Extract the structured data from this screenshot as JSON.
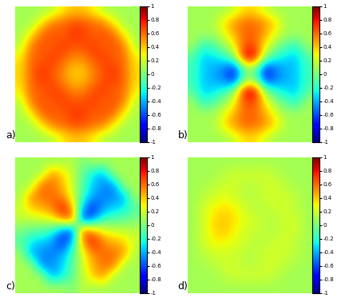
{
  "chart_data": [
    {
      "type": "heatmap",
      "annotation": "a)",
      "tick_labels": false,
      "colorbar_range": [
        -1,
        1
      ],
      "colorbar_ticks": [
        1,
        0.8,
        0.6,
        0.4,
        0.2,
        0,
        -0.2,
        -0.4,
        -0.6,
        -0.8,
        -1
      ],
      "cells": [
        [
          0.1,
          0.1,
          0.1,
          0.15,
          0.3,
          0.4,
          0.4,
          0.3,
          0.15,
          0.1,
          0.1,
          0.1
        ],
        [
          0.1,
          0.1,
          0.3,
          0.55,
          0.6,
          0.65,
          0.65,
          0.6,
          0.55,
          0.3,
          0.1,
          0.1
        ],
        [
          0.1,
          0.3,
          0.6,
          0.65,
          0.6,
          0.7,
          0.7,
          0.6,
          0.65,
          0.6,
          0.3,
          0.1
        ],
        [
          0.15,
          0.55,
          0.65,
          0.6,
          0.7,
          0.65,
          0.65,
          0.7,
          0.6,
          0.65,
          0.55,
          0.15
        ],
        [
          0.3,
          0.6,
          0.6,
          0.7,
          0.65,
          0.55,
          0.55,
          0.65,
          0.7,
          0.6,
          0.6,
          0.3
        ],
        [
          0.35,
          0.6,
          0.7,
          0.65,
          0.55,
          0.4,
          0.4,
          0.55,
          0.65,
          0.7,
          0.6,
          0.35
        ],
        [
          0.35,
          0.6,
          0.7,
          0.65,
          0.55,
          0.4,
          0.4,
          0.55,
          0.65,
          0.7,
          0.6,
          0.35
        ],
        [
          0.3,
          0.6,
          0.6,
          0.7,
          0.65,
          0.55,
          0.55,
          0.65,
          0.7,
          0.6,
          0.6,
          0.3
        ],
        [
          0.15,
          0.55,
          0.65,
          0.6,
          0.7,
          0.65,
          0.65,
          0.7,
          0.6,
          0.65,
          0.55,
          0.15
        ],
        [
          0.1,
          0.3,
          0.6,
          0.65,
          0.6,
          0.7,
          0.7,
          0.6,
          0.65,
          0.6,
          0.3,
          0.1
        ],
        [
          0.1,
          0.1,
          0.3,
          0.55,
          0.6,
          0.65,
          0.65,
          0.6,
          0.55,
          0.3,
          0.1,
          0.1
        ],
        [
          0.1,
          0.1,
          0.1,
          0.15,
          0.3,
          0.4,
          0.4,
          0.3,
          0.15,
          0.1,
          0.1,
          0.1
        ]
      ]
    },
    {
      "type": "heatmap",
      "annotation": "b)",
      "tick_labels": false,
      "colorbar_range": [
        -1,
        1
      ],
      "colorbar_ticks": [
        1,
        0.8,
        0.6,
        0.4,
        0.2,
        0,
        -0.2,
        -0.4,
        -0.6,
        -0.8,
        -1
      ],
      "cells": [
        [
          0.1,
          0.1,
          0.1,
          0.1,
          0.2,
          0.35,
          0.35,
          0.2,
          0.1,
          0.1,
          0.1,
          0.1
        ],
        [
          0.1,
          0.1,
          0.1,
          0.35,
          0.5,
          0.6,
          0.6,
          0.5,
          0.35,
          0.1,
          0.1,
          0.1
        ],
        [
          0.1,
          0.1,
          0.1,
          0.25,
          0.45,
          0.6,
          0.6,
          0.45,
          0.25,
          0.1,
          0.1,
          0.1
        ],
        [
          0.1,
          -0.2,
          -0.1,
          0.05,
          0.3,
          0.65,
          0.65,
          0.3,
          0.05,
          -0.1,
          -0.2,
          0.1
        ],
        [
          -0.1,
          -0.35,
          -0.3,
          -0.2,
          0.05,
          0.85,
          0.85,
          0.05,
          -0.2,
          -0.3,
          -0.35,
          -0.1
        ],
        [
          -0.15,
          -0.35,
          -0.4,
          -0.5,
          -0.7,
          0.0,
          0.0,
          -0.7,
          -0.5,
          -0.4,
          -0.35,
          -0.15
        ],
        [
          -0.15,
          -0.35,
          -0.4,
          -0.5,
          -0.7,
          0.0,
          0.0,
          -0.7,
          -0.5,
          -0.4,
          -0.35,
          -0.15
        ],
        [
          -0.1,
          -0.35,
          -0.3,
          -0.2,
          0.05,
          0.85,
          0.85,
          0.05,
          -0.2,
          -0.3,
          -0.35,
          -0.1
        ],
        [
          0.1,
          -0.2,
          -0.1,
          0.05,
          0.3,
          0.65,
          0.65,
          0.3,
          0.05,
          -0.1,
          -0.2,
          0.1
        ],
        [
          0.1,
          0.1,
          0.1,
          0.25,
          0.45,
          0.6,
          0.6,
          0.45,
          0.25,
          0.1,
          0.1,
          0.1
        ],
        [
          0.1,
          0.1,
          0.1,
          0.35,
          0.5,
          0.6,
          0.6,
          0.5,
          0.35,
          0.1,
          0.1,
          0.1
        ],
        [
          0.1,
          0.1,
          0.1,
          0.1,
          0.2,
          0.35,
          0.35,
          0.2,
          0.1,
          0.1,
          0.1,
          0.1
        ]
      ]
    },
    {
      "type": "heatmap",
      "annotation": "c)",
      "tick_labels": false,
      "colorbar_range": [
        -1,
        1
      ],
      "colorbar_ticks": [
        1,
        0.8,
        0.6,
        0.4,
        0.2,
        0,
        -0.2,
        -0.4,
        -0.6,
        -0.8,
        -1
      ],
      "cells": [
        [
          0.1,
          0.1,
          0.1,
          0.1,
          0.1,
          0.15,
          0.0,
          0.1,
          0.1,
          0.1,
          0.1,
          0.1
        ],
        [
          0.1,
          0.1,
          0.1,
          0.52,
          0.38,
          0.17,
          -0.07,
          -0.28,
          -0.42,
          0.1,
          0.1,
          0.1
        ],
        [
          0.1,
          0.1,
          0.6,
          0.57,
          0.45,
          0.2,
          -0.1,
          -0.35,
          -0.47,
          -0.5,
          0.1,
          0.1
        ],
        [
          0.1,
          0.52,
          0.57,
          0.6,
          0.53,
          0.26,
          -0.16,
          -0.43,
          -0.5,
          -0.47,
          -0.42,
          0.1
        ],
        [
          0.2,
          0.38,
          0.45,
          0.53,
          0.8,
          0.5,
          -0.4,
          -0.7,
          -0.43,
          -0.35,
          -0.28,
          -0.1
        ],
        [
          0.15,
          0.17,
          0.2,
          0.26,
          0.5,
          0.7,
          -0.7,
          -0.5,
          -0.16,
          -0.1,
          -0.07,
          0.0
        ],
        [
          0.0,
          -0.07,
          -0.1,
          -0.16,
          -0.5,
          -0.7,
          0.7,
          0.5,
          0.26,
          0.2,
          0.17,
          0.15
        ],
        [
          -0.1,
          -0.28,
          -0.35,
          -0.43,
          -0.7,
          -0.4,
          0.5,
          0.8,
          0.53,
          0.45,
          0.38,
          0.2
        ],
        [
          0.1,
          -0.42,
          -0.47,
          -0.5,
          -0.43,
          -0.16,
          0.26,
          0.53,
          0.6,
          0.57,
          0.52,
          0.1
        ],
        [
          0.1,
          0.1,
          -0.5,
          -0.47,
          -0.35,
          -0.1,
          0.2,
          0.45,
          0.57,
          0.6,
          0.1,
          0.1
        ],
        [
          0.1,
          0.1,
          0.1,
          -0.42,
          -0.28,
          -0.07,
          0.17,
          0.38,
          0.52,
          0.1,
          0.1,
          0.1
        ],
        [
          0.1,
          0.1,
          0.1,
          0.1,
          0.1,
          0.0,
          0.15,
          0.1,
          0.1,
          0.1,
          0.1,
          0.1
        ]
      ]
    },
    {
      "type": "heatmap",
      "annotation": "d)",
      "tick_labels": false,
      "colorbar_range": [
        -1,
        1
      ],
      "colorbar_ticks": [
        1,
        0.8,
        0.6,
        0.4,
        0.2,
        0,
        -0.2,
        -0.4,
        -0.6,
        -0.8,
        -1
      ],
      "cells": [
        [
          0.1,
          0.1,
          0.1,
          0.1,
          0.1,
          0.1,
          0.1,
          0.1,
          0.1,
          0.1,
          0.1,
          0.1
        ],
        [
          0.1,
          0.1,
          0.1,
          0.15,
          0.2,
          0.2,
          0.2,
          0.2,
          0.15,
          0.1,
          0.1,
          0.1
        ],
        [
          0.1,
          0.1,
          0.15,
          0.2,
          0.2,
          0.15,
          0.15,
          0.2,
          0.2,
          0.15,
          0.1,
          0.1
        ],
        [
          0.1,
          0.15,
          0.2,
          0.25,
          0.2,
          0.15,
          0.15,
          0.2,
          0.2,
          0.2,
          0.15,
          0.1
        ],
        [
          0.1,
          0.2,
          0.3,
          0.35,
          0.3,
          0.2,
          0.15,
          0.15,
          0.2,
          0.2,
          0.15,
          0.1
        ],
        [
          0.1,
          0.2,
          0.35,
          0.4,
          0.35,
          0.25,
          0.2,
          0.15,
          0.15,
          0.2,
          0.2,
          0.1
        ],
        [
          0.1,
          0.2,
          0.35,
          0.4,
          0.3,
          0.2,
          0.2,
          0.15,
          0.15,
          0.2,
          0.2,
          0.1
        ],
        [
          0.1,
          0.2,
          0.3,
          0.3,
          0.25,
          0.2,
          0.15,
          0.15,
          0.2,
          0.2,
          0.15,
          0.1
        ],
        [
          0.1,
          0.15,
          0.2,
          0.2,
          0.2,
          0.15,
          0.15,
          0.2,
          0.2,
          0.2,
          0.15,
          0.1
        ],
        [
          0.1,
          0.1,
          0.15,
          0.2,
          0.2,
          0.15,
          0.15,
          0.2,
          0.2,
          0.15,
          0.1,
          0.1
        ],
        [
          0.1,
          0.1,
          0.1,
          0.15,
          0.2,
          0.2,
          0.2,
          0.2,
          0.15,
          0.1,
          0.1,
          0.1
        ],
        [
          0.1,
          0.1,
          0.1,
          0.1,
          0.1,
          0.1,
          0.1,
          0.1,
          0.1,
          0.1,
          0.1,
          0.1
        ]
      ]
    }
  ]
}
